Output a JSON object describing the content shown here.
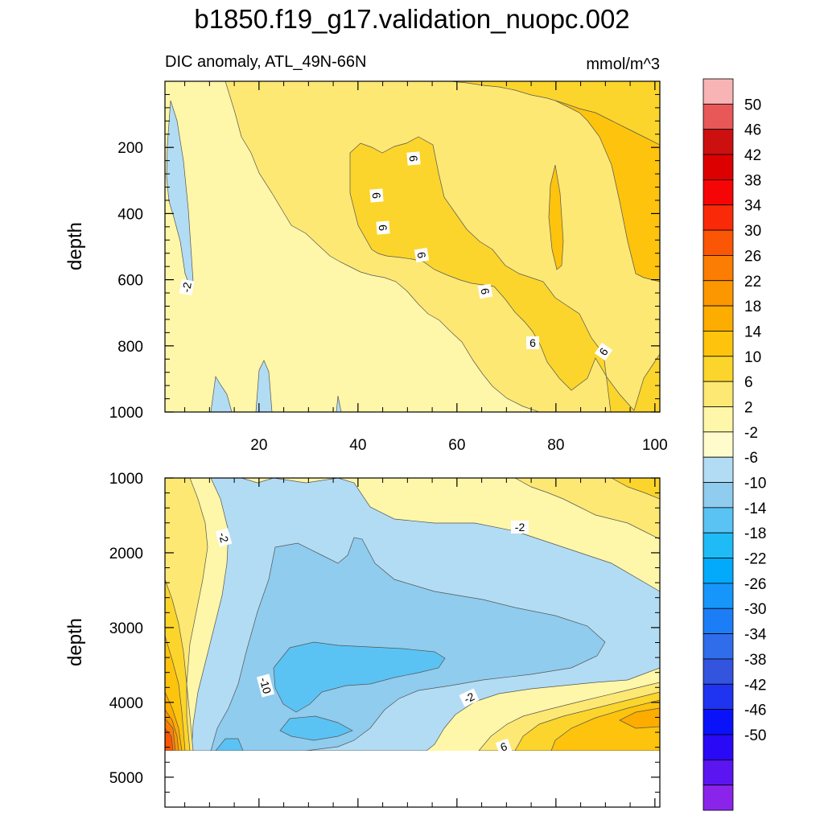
{
  "chart_data": {
    "type": "heatmap",
    "title": "b1850.f19_g17.validation_nuopc.002",
    "subtitle": "DIC anomaly, ATL_49N-66N",
    "units": "mmol/m^3",
    "x_range": [
      1,
      101
    ],
    "x_ticks": [
      "20",
      "40",
      "60",
      "80",
      "100"
    ],
    "ylabel": "depth",
    "panels": [
      {
        "name": "upper",
        "ylim": [
          0,
          1000
        ],
        "y_ticks": [
          "200",
          "400",
          "600",
          "800",
          "1000"
        ],
        "contour_labels": [
          "-2",
          "6",
          "6",
          "6",
          "6",
          "6",
          "6",
          "6"
        ]
      },
      {
        "name": "lower",
        "ylim": [
          1000,
          5400
        ],
        "y_ticks": [
          "1000",
          "2000",
          "3000",
          "4000",
          "5000"
        ],
        "data_bottom_depth": 4600,
        "contour_labels": [
          "-2",
          "-2",
          "-2",
          "-10",
          "6"
        ]
      }
    ],
    "colorbar": {
      "labels": [
        "50",
        "46",
        "42",
        "38",
        "34",
        "30",
        "26",
        "22",
        "18",
        "14",
        "10",
        "6",
        "2",
        "-2",
        "-6",
        "-10",
        "-14",
        "-18",
        "-22",
        "-26",
        "-30",
        "-34",
        "-38",
        "-42",
        "-46",
        "-50"
      ],
      "colors": [
        "#f8b4b4",
        "#e85858",
        "#cc1010",
        "#dd0000",
        "#f50505",
        "#fa2a08",
        "#fb5605",
        "#fb7d03",
        "#fc9700",
        "#fdac00",
        "#fdc30d",
        "#fbd52b",
        "#fde874",
        "#fef6a8",
        "#fffbcd",
        "#b2dcf3",
        "#8fccee",
        "#5ac3f4",
        "#1fbbf7",
        "#03a9fb",
        "#1696fa",
        "#1c7ef6",
        "#2f6dea",
        "#3354de",
        "#1f34f0",
        "#0a12fa",
        "#2a09f7",
        "#5a15f1",
        "#8a24eb"
      ]
    }
  }
}
